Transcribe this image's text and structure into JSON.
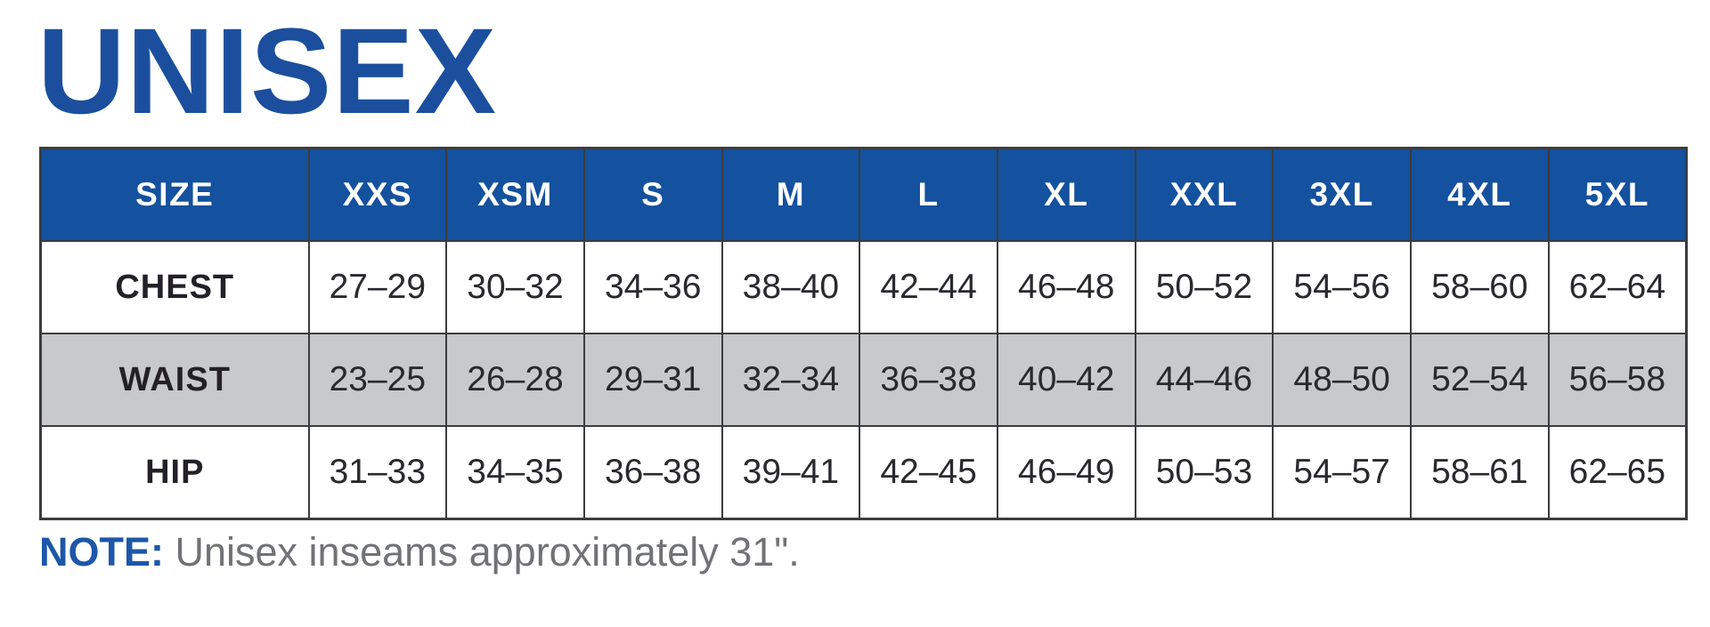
{
  "title": "UNISEX",
  "colors": {
    "title_blue": "#1b4f9e",
    "header_blue": "#14519e",
    "striped_row_gray": "#c8c9cb",
    "border_dark": "#3c3c3e",
    "note_blue": "#1c57a8",
    "note_gray": "#717276"
  },
  "table": {
    "columns": [
      "SIZE",
      "XXS",
      "XSM",
      "S",
      "M",
      "L",
      "XL",
      "XXL",
      "3XL",
      "4XL",
      "5XL"
    ],
    "rows": [
      {
        "label": "CHEST",
        "values": [
          "27–29",
          "30–32",
          "34–36",
          "38–40",
          "42–44",
          "46–48",
          "50–52",
          "54–56",
          "58–60",
          "62–64"
        ]
      },
      {
        "label": "WAIST",
        "values": [
          "23–25",
          "26–28",
          "29–31",
          "32–34",
          "36–38",
          "40–42",
          "44–46",
          "48–50",
          "52–54",
          "56–58"
        ]
      },
      {
        "label": "HIP",
        "values": [
          "31–33",
          "34–35",
          "36–38",
          "39–41",
          "42–45",
          "46–49",
          "50–53",
          "54–57",
          "58–61",
          "62–65"
        ]
      }
    ]
  },
  "note": {
    "label": "NOTE:",
    "text": " Unisex inseams approximately 31\"."
  }
}
